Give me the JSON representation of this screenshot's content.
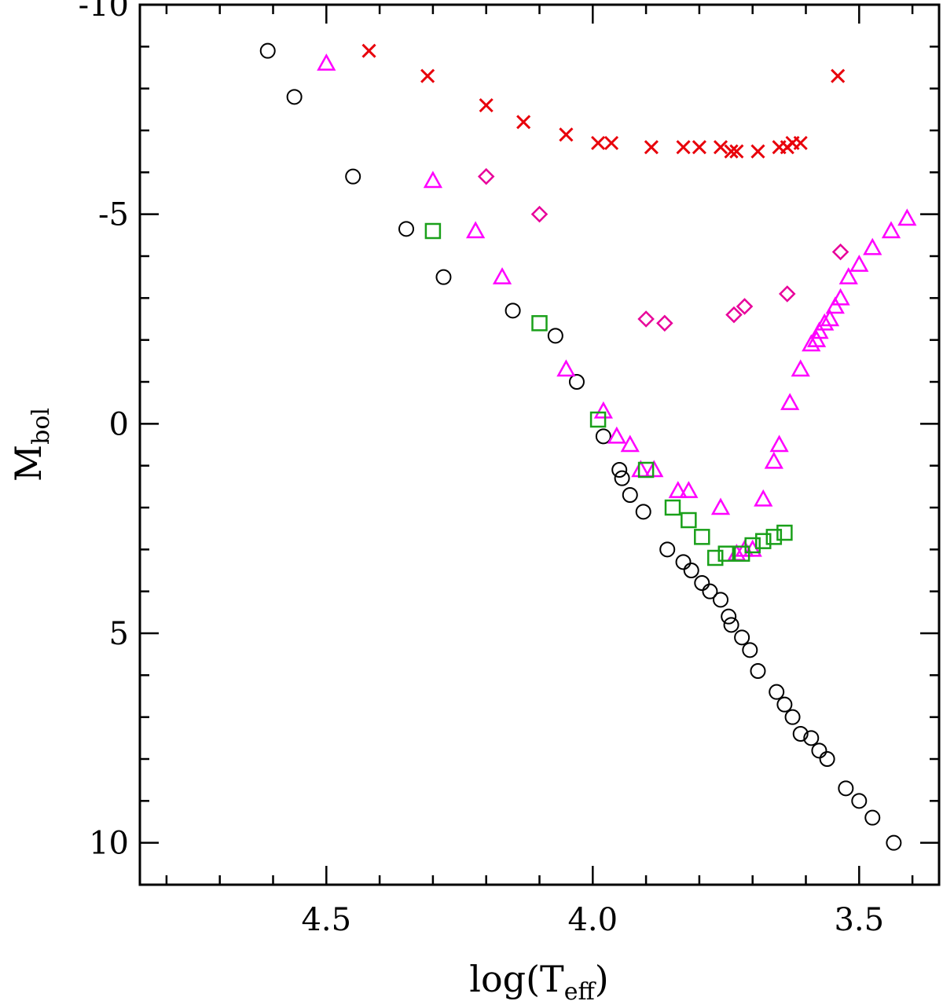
{
  "chart_data": {
    "type": "scatter",
    "title": "",
    "xlabel_main": "log(T",
    "xlabel_sub": "eff",
    "xlabel_close": ")",
    "ylabel_main": "M",
    "ylabel_sub": "bol",
    "xlim": [
      4.85,
      3.35
    ],
    "ylim": [
      -10,
      11
    ],
    "x_ticks": [
      {
        "value": 4.5,
        "label": "4.5"
      },
      {
        "value": 4.0,
        "label": "4.0"
      },
      {
        "value": 3.5,
        "label": "3.5"
      }
    ],
    "y_ticks": [
      {
        "value": -10,
        "label": "-10"
      },
      {
        "value": -5,
        "label": "-5"
      },
      {
        "value": 0,
        "label": "0"
      },
      {
        "value": 5,
        "label": "5"
      },
      {
        "value": 10,
        "label": "10"
      }
    ],
    "x_minor_step": 0.1,
    "y_minor_step": 1,
    "series": [
      {
        "name": "circles",
        "marker": "circle",
        "color": "#000000",
        "points": [
          [
            4.61,
            -8.9
          ],
          [
            4.56,
            -7.8
          ],
          [
            4.45,
            -5.9
          ],
          [
            4.35,
            -4.65
          ],
          [
            4.28,
            -3.5
          ],
          [
            4.15,
            -2.7
          ],
          [
            4.07,
            -2.1
          ],
          [
            4.03,
            -1.0
          ],
          [
            3.98,
            0.3
          ],
          [
            3.95,
            1.1
          ],
          [
            3.945,
            1.3
          ],
          [
            3.93,
            1.7
          ],
          [
            3.905,
            2.1
          ],
          [
            3.86,
            3.0
          ],
          [
            3.83,
            3.3
          ],
          [
            3.815,
            3.5
          ],
          [
            3.795,
            3.8
          ],
          [
            3.78,
            4.0
          ],
          [
            3.76,
            4.2
          ],
          [
            3.745,
            4.6
          ],
          [
            3.74,
            4.8
          ],
          [
            3.72,
            5.1
          ],
          [
            3.705,
            5.4
          ],
          [
            3.69,
            5.9
          ],
          [
            3.655,
            6.4
          ],
          [
            3.64,
            6.7
          ],
          [
            3.625,
            7.0
          ],
          [
            3.61,
            7.4
          ],
          [
            3.59,
            7.5
          ],
          [
            3.575,
            7.8
          ],
          [
            3.56,
            8.0
          ],
          [
            3.525,
            8.7
          ],
          [
            3.5,
            9.0
          ],
          [
            3.475,
            9.4
          ],
          [
            3.435,
            10.0
          ]
        ]
      },
      {
        "name": "crosses",
        "marker": "cross",
        "color": "#e8000b",
        "points": [
          [
            4.42,
            -8.9
          ],
          [
            4.31,
            -8.3
          ],
          [
            4.2,
            -7.6
          ],
          [
            4.13,
            -7.2
          ],
          [
            4.05,
            -6.9
          ],
          [
            3.99,
            -6.7
          ],
          [
            3.965,
            -6.7
          ],
          [
            3.89,
            -6.6
          ],
          [
            3.83,
            -6.6
          ],
          [
            3.8,
            -6.6
          ],
          [
            3.76,
            -6.6
          ],
          [
            3.74,
            -6.5
          ],
          [
            3.73,
            -6.5
          ],
          [
            3.69,
            -6.5
          ],
          [
            3.65,
            -6.6
          ],
          [
            3.635,
            -6.6
          ],
          [
            3.625,
            -6.7
          ],
          [
            3.61,
            -6.7
          ],
          [
            3.54,
            -8.3
          ]
        ]
      },
      {
        "name": "triangles",
        "marker": "triangle",
        "color": "#ff00ff",
        "points": [
          [
            4.5,
            -8.6
          ],
          [
            4.3,
            -5.8
          ],
          [
            4.22,
            -4.6
          ],
          [
            4.17,
            -3.5
          ],
          [
            4.05,
            -1.3
          ],
          [
            3.98,
            -0.3
          ],
          [
            3.955,
            0.3
          ],
          [
            3.93,
            0.5
          ],
          [
            3.91,
            1.1
          ],
          [
            3.885,
            1.1
          ],
          [
            3.84,
            1.6
          ],
          [
            3.82,
            1.6
          ],
          [
            3.76,
            2.0
          ],
          [
            3.73,
            3.1
          ],
          [
            3.715,
            3.0
          ],
          [
            3.7,
            3.0
          ],
          [
            3.68,
            1.8
          ],
          [
            3.66,
            0.9
          ],
          [
            3.65,
            0.5
          ],
          [
            3.63,
            -0.5
          ],
          [
            3.61,
            -1.3
          ],
          [
            3.59,
            -1.9
          ],
          [
            3.58,
            -2.0
          ],
          [
            3.575,
            -2.2
          ],
          [
            3.565,
            -2.4
          ],
          [
            3.555,
            -2.5
          ],
          [
            3.545,
            -2.8
          ],
          [
            3.535,
            -3.0
          ],
          [
            3.52,
            -3.5
          ],
          [
            3.5,
            -3.8
          ],
          [
            3.475,
            -4.2
          ],
          [
            3.44,
            -4.6
          ],
          [
            3.41,
            -4.9
          ]
        ]
      },
      {
        "name": "squares",
        "marker": "square",
        "color": "#1aa01a",
        "points": [
          [
            4.3,
            -4.6
          ],
          [
            4.1,
            -2.4
          ],
          [
            3.99,
            -0.1
          ],
          [
            3.9,
            1.1
          ],
          [
            3.85,
            2.0
          ],
          [
            3.82,
            2.3
          ],
          [
            3.795,
            2.7
          ],
          [
            3.77,
            3.2
          ],
          [
            3.75,
            3.1
          ],
          [
            3.72,
            3.1
          ],
          [
            3.7,
            2.9
          ],
          [
            3.68,
            2.8
          ],
          [
            3.66,
            2.7
          ],
          [
            3.64,
            2.6
          ]
        ]
      },
      {
        "name": "diamonds",
        "marker": "diamond",
        "color": "#e8009a",
        "points": [
          [
            4.2,
            -5.9
          ],
          [
            4.1,
            -5.0
          ],
          [
            3.9,
            -2.5
          ],
          [
            3.865,
            -2.4
          ],
          [
            3.735,
            -2.6
          ],
          [
            3.715,
            -2.8
          ],
          [
            3.635,
            -3.1
          ],
          [
            3.535,
            -4.1
          ]
        ]
      }
    ]
  }
}
